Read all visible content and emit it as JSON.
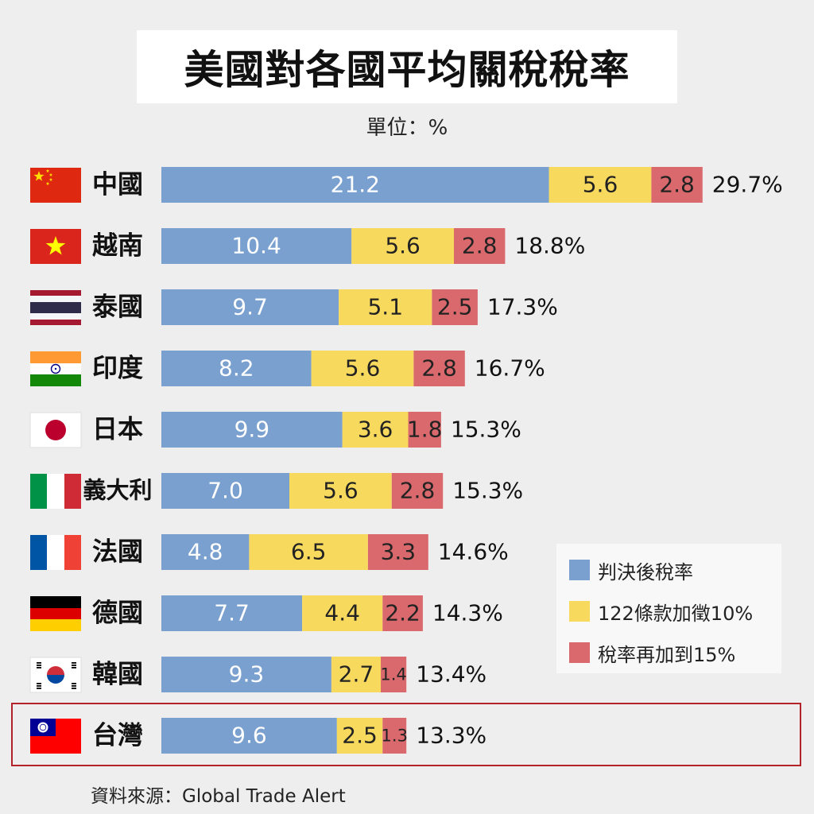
{
  "title": "美國對各國平均關稅稅率",
  "unit_label": "單位：%",
  "source": "資料來源：Global Trade Alert",
  "colors": {
    "ruling": "#7aa0cf",
    "clause122": "#f7d95e",
    "raise15": "#d9696d",
    "highlight_border": "#b3242a"
  },
  "legend": [
    {
      "label": "判決後稅率",
      "color": "#7aa0cf"
    },
    {
      "label": "122條款加徵10%",
      "color": "#f7d95e"
    },
    {
      "label": "稅率再加到15%",
      "color": "#d9696d"
    }
  ],
  "chart_data": {
    "type": "bar",
    "orientation": "horizontal",
    "stacked": true,
    "title": "美國對各國平均關稅稅率",
    "unit": "%",
    "categories": [
      "中國",
      "越南",
      "泰國",
      "印度",
      "日本",
      "義大利",
      "法國",
      "德國",
      "韓國",
      "台灣"
    ],
    "flags": [
      "china-flag",
      "vietnam-flag",
      "thailand-flag",
      "india-flag",
      "japan-flag",
      "italy-flag",
      "france-flag",
      "germany-flag",
      "korea-flag",
      "taiwan-flag"
    ],
    "series": [
      {
        "name": "判決後稅率",
        "values": [
          21.2,
          10.4,
          9.7,
          8.2,
          9.9,
          7.0,
          4.8,
          7.7,
          9.3,
          9.6
        ],
        "labels": [
          "21.2",
          "10.4",
          "9.7",
          "8.2",
          "9.9",
          "7.0",
          "4.8",
          "7.7",
          "9.3",
          "9.6"
        ]
      },
      {
        "name": "122條款加徵10%",
        "values": [
          5.6,
          5.6,
          5.1,
          5.6,
          3.6,
          5.6,
          6.5,
          4.4,
          2.7,
          2.5
        ],
        "labels": [
          "5.6",
          "5.6",
          "5.1",
          "5.6",
          "3.6",
          "5.6",
          "6.5",
          "4.4",
          "2.7",
          "2.5"
        ]
      },
      {
        "name": "稅率再加到15%",
        "values": [
          2.8,
          2.8,
          2.5,
          2.8,
          1.8,
          2.8,
          3.3,
          2.2,
          1.4,
          1.3
        ],
        "labels": [
          "2.8",
          "2.8",
          "2.5",
          "2.8",
          "1.8",
          "2.8",
          "3.3",
          "2.2",
          "1.4",
          "1.3"
        ]
      }
    ],
    "totals": [
      "29.7%",
      "18.8%",
      "17.3%",
      "16.7%",
      "15.3%",
      "15.3%",
      "14.6%",
      "14.3%",
      "13.4%",
      "13.3%"
    ],
    "highlighted_category": "台灣",
    "legend_position": "right"
  }
}
